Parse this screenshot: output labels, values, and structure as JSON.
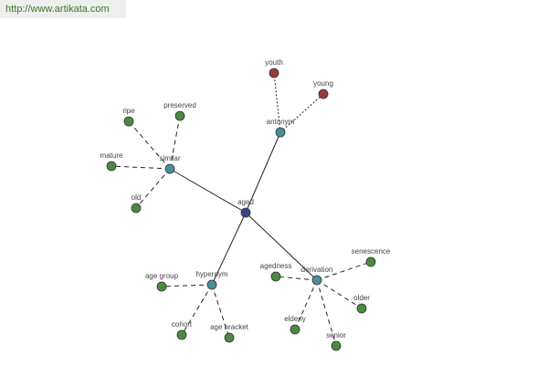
{
  "header": {
    "url": "http://www.artikata.com"
  },
  "nodes": [
    {
      "label": "aged",
      "color": "#3b4090"
    },
    {
      "label": "antonym",
      "color": "#4a8d9c"
    },
    {
      "label": "similar",
      "color": "#4a8d9c"
    },
    {
      "label": "hypernym",
      "color": "#4a8d9c"
    },
    {
      "label": "derivation",
      "color": "#4a8d9c"
    },
    {
      "label": "youth",
      "color": "#9b3b3b"
    },
    {
      "label": "young",
      "color": "#9b3b3b"
    },
    {
      "label": "ripe",
      "color": "#4c8a42"
    },
    {
      "label": "preserved",
      "color": "#4c8a42"
    },
    {
      "label": "mature",
      "color": "#4c8a42"
    },
    {
      "label": "old",
      "color": "#4c8a42"
    },
    {
      "label": "age group",
      "color": "#4c8a42"
    },
    {
      "label": "cohort",
      "color": "#4c8a42"
    },
    {
      "label": "age bracket",
      "color": "#4c8a42"
    },
    {
      "label": "agedness",
      "color": "#4c8a42"
    },
    {
      "label": "senescence",
      "color": "#4c8a42"
    },
    {
      "label": "older",
      "color": "#4c8a42"
    },
    {
      "label": "elderly",
      "color": "#4c8a42"
    },
    {
      "label": "senior",
      "color": "#4c8a42"
    }
  ]
}
